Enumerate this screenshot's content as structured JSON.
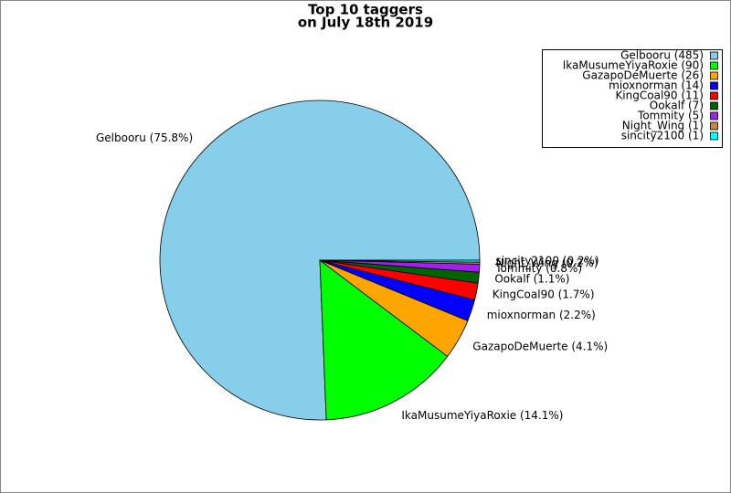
{
  "chart_data": {
    "type": "pie",
    "title": "Top 10 taggers",
    "subtitle": "on July 18th 2019",
    "categories": [
      "Gelbooru",
      "IkaMusumeYiyaRoxie",
      "GazapoDeMuerte",
      "mioxnorman",
      "KingCoal90",
      "Ookalf",
      "Tommity",
      "Night_Wing",
      "sincity2100"
    ],
    "values": [
      75.8,
      14.1,
      4.1,
      2.2,
      1.7,
      1.1,
      0.8,
      0.2,
      0.2
    ],
    "value_labels": [
      "Gelbooru (75.8%)",
      "IkaMusumeYiyaRoxie (14.1%)",
      "GazapoDeMuerte (4.1%)",
      "mioxnorman (2.2%)",
      "KingCoal90 (1.7%)",
      "Ookalf (1.1%)",
      "Tommity (0.8%)",
      "Night_Wing (0.2%)",
      "sincity2100 (0.2%)"
    ],
    "legend_labels": [
      "Gelbooru (485)",
      "IkaMusumeYiyaRoxie (90)",
      "GazapoDeMuerte (26)",
      "mioxnorman (14)",
      "KingCoal90 (11)",
      "Ookalf (7)",
      "Tommity (5)",
      "Night_Wing (1)",
      "sincity2100 (1)"
    ],
    "colors": [
      "#87ceeb",
      "#00ff00",
      "#ffa500",
      "#0000ff",
      "#ff0000",
      "#006400",
      "#a020f0",
      "#cd853f",
      "#00ffff"
    ],
    "legend": "upper right"
  }
}
